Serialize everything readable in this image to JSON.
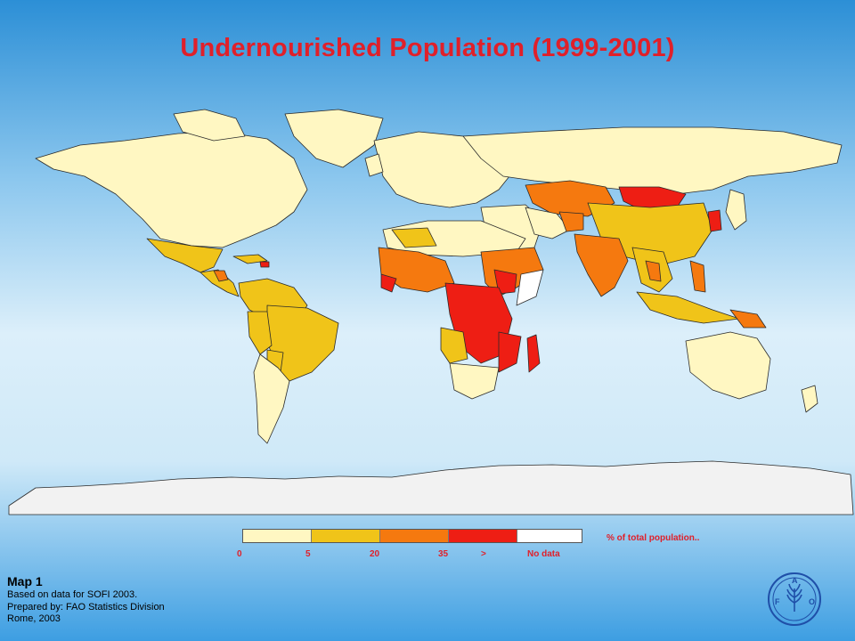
{
  "title": "Undernourished Population (1999-2001)",
  "legend": {
    "caption": "% of total population..",
    "ticks": [
      "0",
      "5",
      "20",
      "35",
      ">",
      "No data"
    ],
    "classes": [
      {
        "range": "0-5",
        "color": "#fff7c2"
      },
      {
        "range": "5-20",
        "color": "#f0c419"
      },
      {
        "range": "20-35",
        "color": "#f5790f"
      },
      {
        "range": "35+",
        "color": "#ee1e14"
      },
      {
        "range": "No data",
        "color": "#ffffff"
      }
    ]
  },
  "footer": {
    "map_label": "Map 1",
    "line1": "Based on data for SOFI 2003.",
    "line2": "Prepared by: FAO Statistics Division",
    "line3": "Rome, 2003"
  },
  "logo": {
    "icon": "fao-logo-icon",
    "letters": "FAO"
  },
  "colors": {
    "title": "#e0202a",
    "legend_text": "#e0202a",
    "ocean_top": "#2c8fd6",
    "ocean_mid": "#dceffa",
    "antarctica": "#f2f2f2"
  }
}
